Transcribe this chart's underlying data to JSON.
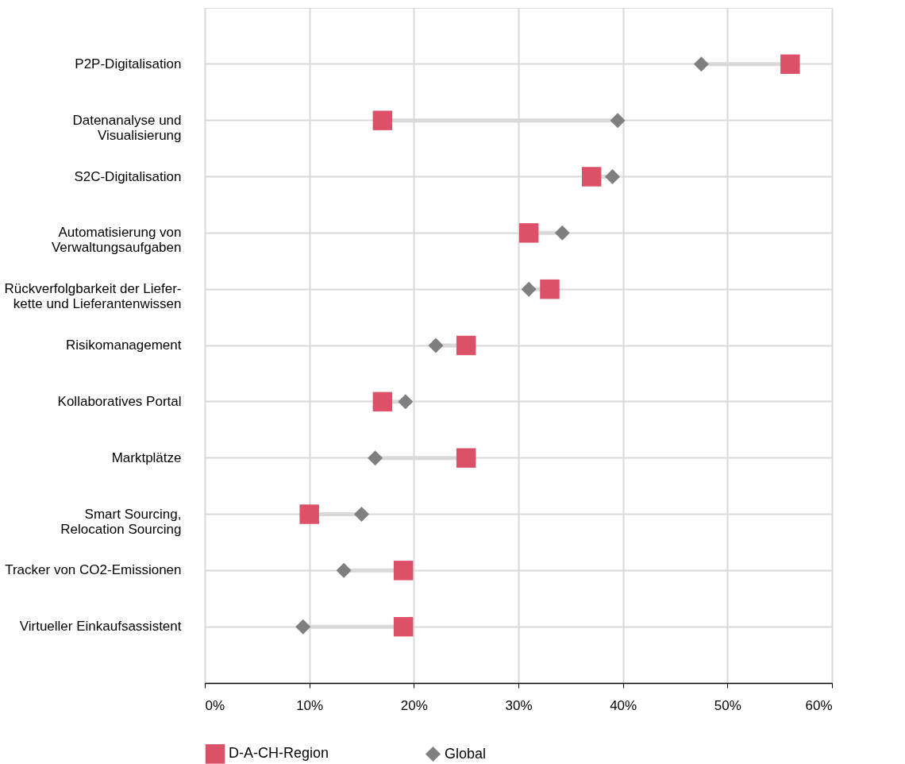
{
  "chart_data": {
    "type": "scatter",
    "orientation": "horizontal",
    "categories": [
      "P2P-Digitalisation",
      "Datenanalyse und\nVisualisierung",
      "S2C-Digitalisation",
      "Automatisierung von\nVerwaltungsaufgaben",
      "Rückverfolgbarkeit der Liefer-\nkette und Lieferantenwissen",
      "Risikomanagement",
      "Kollaboratives Portal",
      "Marktplätze",
      "Smart Sourcing,\nRelocation Sourcing",
      "Tracker von CO2-Emissionen",
      "Virtueller Einkaufsassistent"
    ],
    "series": [
      {
        "name": "D-A-CH-Region",
        "color": "#dc5068",
        "marker": "square",
        "values": [
          56,
          17,
          37,
          31,
          33,
          25,
          17,
          25,
          10,
          19,
          19
        ]
      },
      {
        "name": "Global",
        "color": "#7f7f7f",
        "marker": "diamond",
        "values": [
          47.5,
          39.5,
          39,
          34.2,
          31,
          22.1,
          19.2,
          16.3,
          15,
          13.3,
          9.4
        ]
      }
    ],
    "xlim": [
      0,
      60
    ],
    "xticks": [
      {
        "value": 0,
        "label": "0%"
      },
      {
        "value": 10,
        "label": "10%"
      },
      {
        "value": 20,
        "label": "20%"
      },
      {
        "value": 30,
        "label": "30%"
      },
      {
        "value": 40,
        "label": "40%"
      },
      {
        "value": 50,
        "label": "50%"
      },
      {
        "value": 60,
        "label": "60%"
      }
    ],
    "grid": true,
    "legend": "bottom"
  }
}
